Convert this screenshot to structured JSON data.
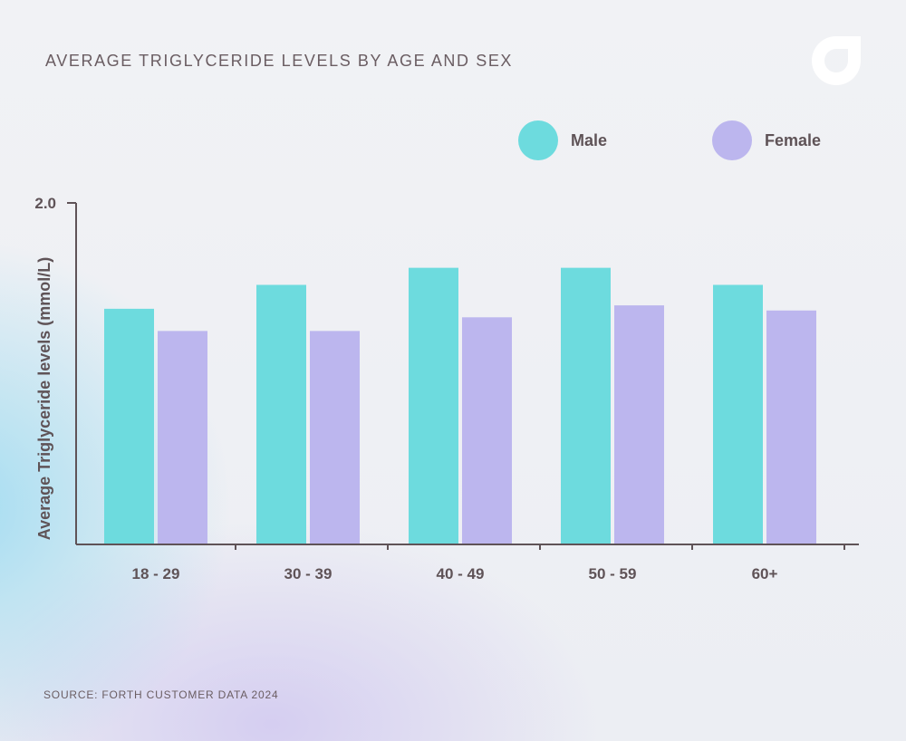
{
  "title": "AVERAGE TRIGLYCERIDE LEVELS BY AGE AND SEX",
  "source": "SOURCE: FORTH CUSTOMER DATA 2024",
  "logo_icon": "forth-logo-icon",
  "colors": {
    "male": "#6ddbde",
    "female": "#bcb6ee",
    "axis": "#5f5357",
    "text": "#5f5357"
  },
  "chart_data": {
    "type": "bar",
    "title": "AVERAGE TRIGLYCERIDE LEVELS BY AGE AND SEX",
    "xlabel": "",
    "ylabel": "Average Triglyceride levels (mmol/L)",
    "ylim": [
      0,
      2.0
    ],
    "y_tick_labels": [
      "2.0"
    ],
    "categories": [
      "18 - 29",
      "30 - 39",
      "40 - 49",
      "50 - 59",
      "60+"
    ],
    "series": [
      {
        "name": "Male",
        "values": [
          1.38,
          1.52,
          1.62,
          1.62,
          1.52
        ]
      },
      {
        "name": "Female",
        "values": [
          1.25,
          1.25,
          1.33,
          1.4,
          1.37
        ]
      }
    ],
    "legend_position": "top-right",
    "grid": false
  }
}
